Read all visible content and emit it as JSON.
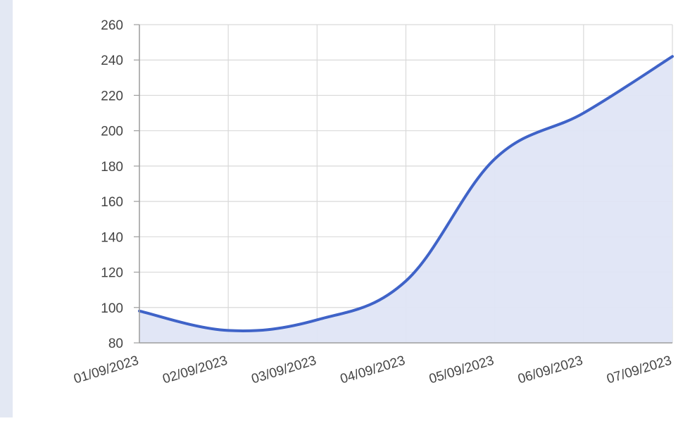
{
  "chart_data": {
    "type": "area",
    "title": "",
    "xlabel": "",
    "ylabel": "",
    "categories": [
      "01/09/2023",
      "02/09/2023",
      "03/09/2023",
      "04/09/2023",
      "05/09/2023",
      "06/09/2023",
      "07/09/2023"
    ],
    "values": [
      98,
      87,
      93,
      115,
      184,
      210,
      242
    ],
    "ylim": [
      80,
      260
    ],
    "yticks": [
      80,
      100,
      120,
      140,
      160,
      180,
      200,
      220,
      240,
      260
    ],
    "grid": true,
    "legend": "none",
    "colors": {
      "line": "#3f63c8",
      "fill": "#dfe5f6",
      "grid": "#d9d9d9",
      "axis": "#9e9e9e"
    }
  }
}
